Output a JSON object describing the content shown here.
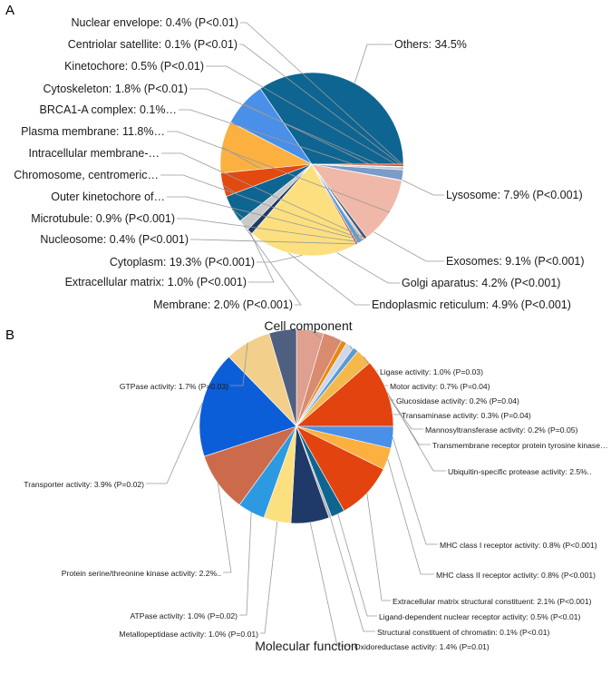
{
  "chart_data": [
    {
      "panel": "A",
      "type": "pie",
      "title": "Cell component",
      "slices": [
        {
          "label": "Others: 34.5%",
          "value": 34.5,
          "color": "#0f6591"
        },
        {
          "label": "Lysosome: 7.9% (P<0.001)",
          "value": 7.9,
          "color": "#4a8fe8"
        },
        {
          "label": "Exosomes: 9.1% (P<0.001)",
          "value": 9.1,
          "color": "#fbb040"
        },
        {
          "label": "Golgi aparatus: 4.2% (P<0.001)",
          "value": 4.2,
          "color": "#e34a10"
        },
        {
          "label": "Endoplasmic reticulum: 4.9% (P<0.001)",
          "value": 4.9,
          "color": "#0f6591"
        },
        {
          "label": "Membrane: 2.0% (P<0.001)",
          "value": 2.0,
          "color": "#c9c9c9"
        },
        {
          "label": "Extracellular matrix: 1.0% (P<0.001)",
          "value": 1.0,
          "color": "#1f3a68"
        },
        {
          "label": "Cytoplasm: 19.3% (P<0.001)",
          "value": 19.3,
          "color": "#fce07f"
        },
        {
          "label": "Nucleosome: 0.4% (P<0.001)",
          "value": 0.4,
          "color": "#cf5c3d"
        },
        {
          "label": "Microtubule: 0.9% (P<0.001)",
          "value": 0.9,
          "color": "#5b9bd5"
        },
        {
          "label": "Outer kinetochore of…",
          "value": 0.2,
          "color": "#2e5f9a"
        },
        {
          "label": "Chromosome, centromeric…",
          "value": 0.2,
          "color": "#f5a623"
        },
        {
          "label": "Intracellular membrane-…",
          "value": 0.6,
          "color": "#4a5a7a"
        },
        {
          "label": "Plasma membrane: 11.8%…",
          "value": 11.8,
          "color": "#f0b8a8"
        },
        {
          "label": "BRCA1-A complex: 0.1%…",
          "value": 0.1,
          "color": "#3a5a80"
        },
        {
          "label": "Cytoskeleton: 1.8% (P<0.01)",
          "value": 1.8,
          "color": "#7a9cc8"
        },
        {
          "label": "Kinetochore: 0.5% (P<0.01)",
          "value": 0.5,
          "color": "#b8c8e0"
        },
        {
          "label": "Centriolar satellite: 0.1% (P<0.01)",
          "value": 0.1,
          "color": "#4a76c0"
        },
        {
          "label": "Nuclear envelope: 0.4% (P<0.01)",
          "value": 0.4,
          "color": "#e34a10"
        }
      ]
    },
    {
      "panel": "B",
      "type": "pie",
      "title": "Molecular function",
      "slices": [
        {
          "label": "Ligase activity: 1.0% (P=0.03)",
          "value": 1.0,
          "color": "#dfa090"
        },
        {
          "label": "Motor activity: 0.7% (P=0.04)",
          "value": 0.7,
          "color": "#d98b6f"
        },
        {
          "label": "Glucosidase activity: 0.2% (P=0.04)",
          "value": 0.2,
          "color": "#e8880f"
        },
        {
          "label": "Transaminase activity: 0.3% (P=0.04)",
          "value": 0.3,
          "color": "#d0d8e8"
        },
        {
          "label": "Mannosyltransferase activity: 0.2% (P=0.05)",
          "value": 0.2,
          "color": "#5b9bd5"
        },
        {
          "label": "Transmembrane receptor protein tyrosine kinase…",
          "value": 0.6,
          "color": "#f5b84a"
        },
        {
          "label": "Ubiquitin-specific protease activity: 2.5%..",
          "value": 2.5,
          "color": "#e2430f"
        },
        {
          "label": "MHC class I receptor activity: 0.8% (P<0.001)",
          "value": 0.8,
          "color": "#4a8fe8"
        },
        {
          "label": "MHC class II receptor activity: 0.8% (P<0.001)",
          "value": 0.8,
          "color": "#fbb040"
        },
        {
          "label": "Extracellular matrix structural constituent: 2.1% (P<0.001)",
          "value": 2.1,
          "color": "#e2430f"
        },
        {
          "label": "Ligand-dependent nuclear receptor activity: 0.5% (P<0.01)",
          "value": 0.5,
          "color": "#0f6591"
        },
        {
          "label": "Structural constituent of chromatin: 0.1% (P<0.01)",
          "value": 0.1,
          "color": "#b0b0b0"
        },
        {
          "label": "Oxidoreductase activity: 1.4% (P=0.01)",
          "value": 1.4,
          "color": "#1f3a68"
        },
        {
          "label": "Metallopeptidase activity: 1.0% (P=0.01)",
          "value": 1.0,
          "color": "#fce07f"
        },
        {
          "label": "ATPase activity: 1.0% (P=0.02)",
          "value": 1.0,
          "color": "#2c9ae0"
        },
        {
          "label": "Protein serine/threonine kinase activity: 2.2%..",
          "value": 2.2,
          "color": "#cc6b4c"
        },
        {
          "label": "Transporter activity: 3.9% (P=0.02)",
          "value": 3.9,
          "color": "#0b5ed8"
        },
        {
          "label": "GTPase activity: 1.7% (P=0.03)",
          "value": 1.7,
          "color": "#f2d08c"
        },
        {
          "label": "",
          "value": 1.0,
          "color": "#4f5f7f"
        }
      ]
    }
  ],
  "panels": {
    "a_letter": "A",
    "b_letter": "B"
  }
}
